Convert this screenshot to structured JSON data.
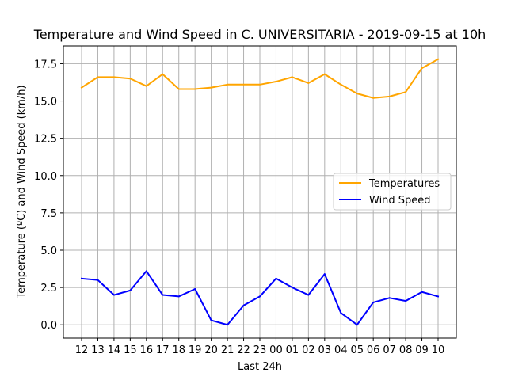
{
  "chart_data": {
    "type": "line",
    "title": "Temperature and Wind Speed in C. UNIVERSITARIA - 2019-09-15 at 10h",
    "xlabel": "Last 24h",
    "ylabel": "Temperature (ºC) and Wind Speed (km/h)",
    "ylim": [
      -0.89,
      18.69
    ],
    "yticks": [
      0.0,
      2.5,
      5.0,
      7.5,
      10.0,
      12.5,
      15.0,
      17.5
    ],
    "ytick_labels": [
      "0.0",
      "2.5",
      "5.0",
      "7.5",
      "10.0",
      "12.5",
      "15.0",
      "17.5"
    ],
    "categories": [
      "12",
      "13",
      "14",
      "15",
      "16",
      "17",
      "18",
      "19",
      "20",
      "21",
      "22",
      "23",
      "00",
      "01",
      "02",
      "03",
      "04",
      "05",
      "06",
      "07",
      "08",
      "09",
      "10"
    ],
    "grid": true,
    "legend_position": "center-right",
    "series": [
      {
        "name": "Temperatures",
        "color": "#ffa500",
        "values": [
          15.9,
          16.6,
          16.6,
          16.5,
          16.0,
          16.8,
          15.8,
          15.8,
          15.9,
          16.1,
          16.1,
          16.1,
          16.3,
          16.6,
          16.2,
          16.8,
          16.1,
          15.5,
          15.2,
          15.3,
          15.6,
          17.2,
          17.8
        ]
      },
      {
        "name": "Wind Speed",
        "color": "#0000ff",
        "values": [
          3.1,
          3.0,
          2.0,
          2.3,
          3.6,
          2.0,
          1.9,
          2.4,
          0.3,
          0.0,
          1.3,
          1.9,
          3.1,
          2.5,
          2.0,
          3.4,
          0.8,
          0.0,
          1.5,
          1.8,
          1.6,
          2.2,
          1.9
        ]
      }
    ]
  }
}
